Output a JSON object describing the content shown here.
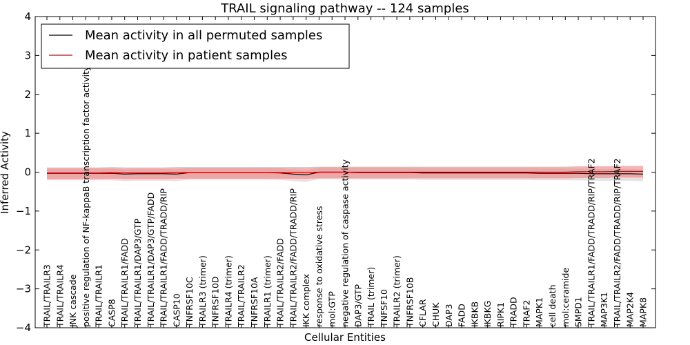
{
  "chart_data": {
    "type": "line",
    "title": "TRAIL signaling pathway -- 124 samples",
    "xlabel": "Cellular Entities",
    "ylabel": "Inferred Activity",
    "ylim": [
      -4,
      4
    ],
    "yticks": [
      -4,
      -3,
      -2,
      -1,
      0,
      1,
      2,
      3,
      4
    ],
    "ytick_labels": [
      "−4",
      "−3",
      "−2",
      "−1",
      "0",
      "1",
      "2",
      "3",
      "4"
    ],
    "grid": false,
    "legend_position": "top-left",
    "categories": [
      "TRAIL/TRAILR3",
      "TRAIL/TRAILR4",
      "JNK cascade",
      "positive regulation of NF-kappaB transcription factor activity",
      "TRAIL/TRAILR1",
      "CASP8",
      "TRAIL/TRAILR1/FADD",
      "TRAIL/TRAILR1/DAP3/GTP",
      "TRAIL/TRAILR1/DAP3/GTP/FADD",
      "TRAIL/TRAILR1/FADD/TRADD/RIP",
      "CASP10",
      "TNFRSF10C",
      "TRAILR3 (trimer)",
      "TNFRSF10D",
      "TRAILR4 (trimer)",
      "TRAIL/TRAILR2",
      "TNFRSF10A",
      "TRAILR1 (trimer)",
      "TRAIL/TRAILR2/FADD",
      "TRAIL/TRAILR2/FADD/TRADD/RIP",
      "IKK complex",
      "response to oxidative stress",
      "mol:GTP",
      "negative regulation of caspase activity",
      "DAP3/GTP",
      "TRAIL (trimer)",
      "TNFSF10",
      "TRAILR2 (trimer)",
      "TNFRSF10B",
      "CFLAR",
      "CHUK",
      "DAP3",
      "FADD",
      "IKBKB",
      "IKBKG",
      "RIPK1",
      "TRADD",
      "TRAF2",
      "MAPK1",
      "cell death",
      "mol:ceramide",
      "SMPD1",
      "TRAIL/TRAILR1/FADD/TRADD/RIP/TRAF2",
      "MAP3K1",
      "TRAIL/TRAILR2/FADD/TRADD/RIP/TRAF2",
      "MAP2K4",
      "MAPK8"
    ],
    "series": [
      {
        "name": "Mean activity in all permuted samples",
        "color": "#000000",
        "values": [
          -0.03,
          -0.03,
          -0.03,
          -0.03,
          -0.03,
          -0.03,
          -0.05,
          -0.04,
          -0.04,
          -0.04,
          -0.05,
          -0.01,
          -0.01,
          -0.01,
          -0.01,
          -0.01,
          -0.01,
          -0.01,
          -0.02,
          -0.05,
          -0.07,
          0.0,
          0.0,
          0.0,
          -0.01,
          -0.01,
          -0.01,
          -0.01,
          -0.01,
          -0.02,
          -0.02,
          -0.02,
          -0.02,
          -0.02,
          -0.02,
          -0.02,
          -0.02,
          -0.02,
          -0.03,
          -0.03,
          -0.03,
          -0.03,
          -0.04,
          -0.04,
          -0.04,
          -0.04,
          -0.05
        ],
        "band": [
          -0.18,
          0.12
        ],
        "band_color": "#cccccc"
      },
      {
        "name": "Mean activity in patient samples",
        "color": "#dd0000",
        "values": [
          -0.02,
          -0.02,
          -0.02,
          -0.02,
          -0.02,
          -0.01,
          -0.02,
          -0.02,
          -0.02,
          -0.02,
          -0.01,
          -0.01,
          -0.01,
          -0.01,
          -0.01,
          -0.01,
          -0.01,
          -0.01,
          -0.01,
          -0.01,
          -0.01,
          0.0,
          0.0,
          0.0,
          0.0,
          0.0,
          0.0,
          0.0,
          0.0,
          0.0,
          0.0,
          0.0,
          0.0,
          0.0,
          0.0,
          0.0,
          0.0,
          0.0,
          0.0,
          0.0,
          0.0,
          0.01,
          0.01,
          0.01,
          0.02,
          0.02,
          0.02
        ],
        "band": [
          -0.16,
          0.14
        ],
        "band_color": "#f08080"
      }
    ]
  }
}
